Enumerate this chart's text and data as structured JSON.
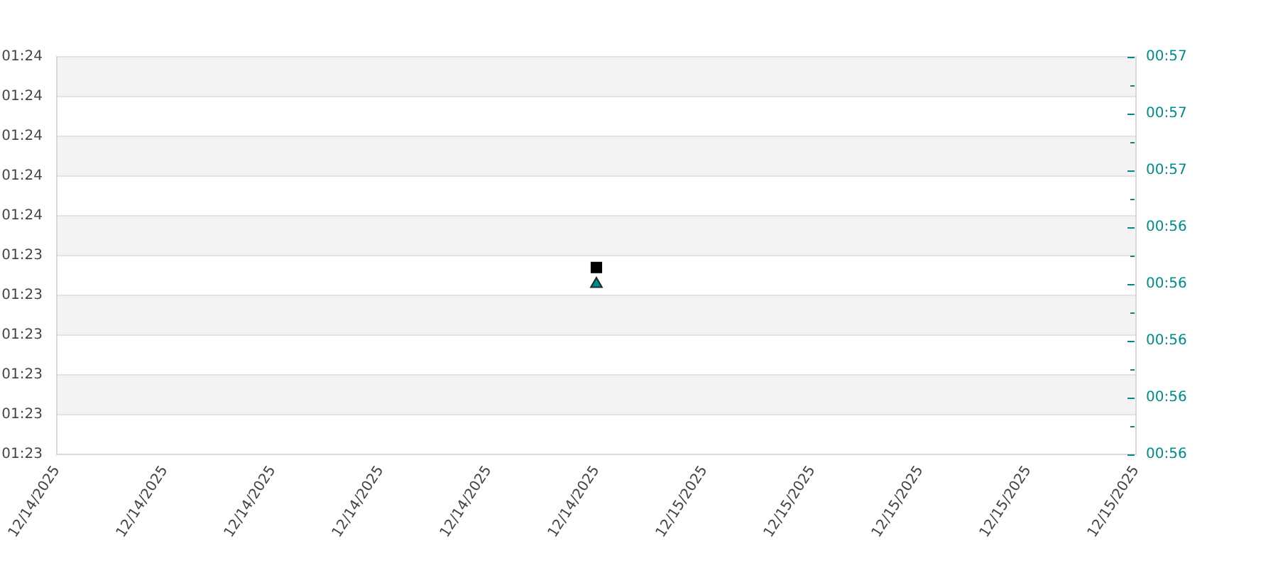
{
  "chart_data": {
    "type": "scatter",
    "xlim": [
      "2025-12-14T12:00",
      "2025-12-15T08:00"
    ],
    "xticks": [
      {
        "value": "2025-12-14T12:00",
        "label": "12/14/2025"
      },
      {
        "value": "2025-12-14T14:00",
        "label": "12/14/2025"
      },
      {
        "value": "2025-12-14T16:00",
        "label": "12/14/2025"
      },
      {
        "value": "2025-12-14T18:00",
        "label": "12/14/2025"
      },
      {
        "value": "2025-12-14T20:00",
        "label": "12/14/2025"
      },
      {
        "value": "2025-12-14T22:00",
        "label": "12/14/2025"
      },
      {
        "value": "2025-12-15T00:00",
        "label": "12/15/2025"
      },
      {
        "value": "2025-12-15T02:00",
        "label": "12/15/2025"
      },
      {
        "value": "2025-12-15T04:00",
        "label": "12/15/2025"
      },
      {
        "value": "2025-12-15T06:00",
        "label": "12/15/2025"
      },
      {
        "value": "2025-12-15T08:00",
        "label": "12/15/2025"
      }
    ],
    "ylim": [
      82.9,
      83.9
    ],
    "yticks": [
      {
        "value": 82.9,
        "label": "01:23"
      },
      {
        "value": 83.0,
        "label": "01:23"
      },
      {
        "value": 83.1,
        "label": "01:23"
      },
      {
        "value": 83.2,
        "label": "01:23"
      },
      {
        "value": 83.3,
        "label": "01:23"
      },
      {
        "value": 83.4,
        "label": "01:23"
      },
      {
        "value": 83.5,
        "label": "01:24"
      },
      {
        "value": 83.6,
        "label": "01:24"
      },
      {
        "value": 83.7,
        "label": "01:24"
      },
      {
        "value": 83.8,
        "label": "01:24"
      },
      {
        "value": 83.9,
        "label": "01:24"
      }
    ],
    "y2lim": [
      56.0,
      56.7
    ],
    "y2ticks": [
      {
        "value": 56.0,
        "label": "00:56"
      },
      {
        "value": 56.05,
        "label": null
      },
      {
        "value": 56.1,
        "label": "00:56"
      },
      {
        "value": 56.15,
        "label": null
      },
      {
        "value": 56.2,
        "label": "00:56"
      },
      {
        "value": 56.25,
        "label": null
      },
      {
        "value": 56.3,
        "label": "00:56"
      },
      {
        "value": 56.35,
        "label": null
      },
      {
        "value": 56.4,
        "label": "00:56"
      },
      {
        "value": 56.45,
        "label": null
      },
      {
        "value": 56.5,
        "label": "00:57"
      },
      {
        "value": 56.55,
        "label": null
      },
      {
        "value": 56.6,
        "label": "00:57"
      },
      {
        "value": 56.65,
        "label": null
      },
      {
        "value": 56.7,
        "label": "00:57"
      }
    ],
    "bands": [
      {
        "axis": "y",
        "from": 83.0,
        "to": 83.1,
        "color": "#f3f3f3"
      },
      {
        "axis": "y",
        "from": 83.2,
        "to": 83.3,
        "color": "#f3f3f3"
      },
      {
        "axis": "y",
        "from": 83.4,
        "to": 83.5,
        "color": "#f3f3f3"
      },
      {
        "axis": "y",
        "from": 83.6,
        "to": 83.7,
        "color": "#f3f3f3"
      },
      {
        "axis": "y",
        "from": 83.8,
        "to": 83.9,
        "color": "#f3f3f3"
      }
    ],
    "grid": "y",
    "legend": false,
    "series": [
      {
        "color": "#000000",
        "marker": "square",
        "x": [
          "2025-12-14T22:00"
        ],
        "values": [
          83.37
        ]
      },
      {
        "color": "#008b8b",
        "marker": "triangle",
        "axis": "y2",
        "x": [
          "2025-12-14T22:00"
        ],
        "values": [
          56.3
        ]
      }
    ]
  }
}
